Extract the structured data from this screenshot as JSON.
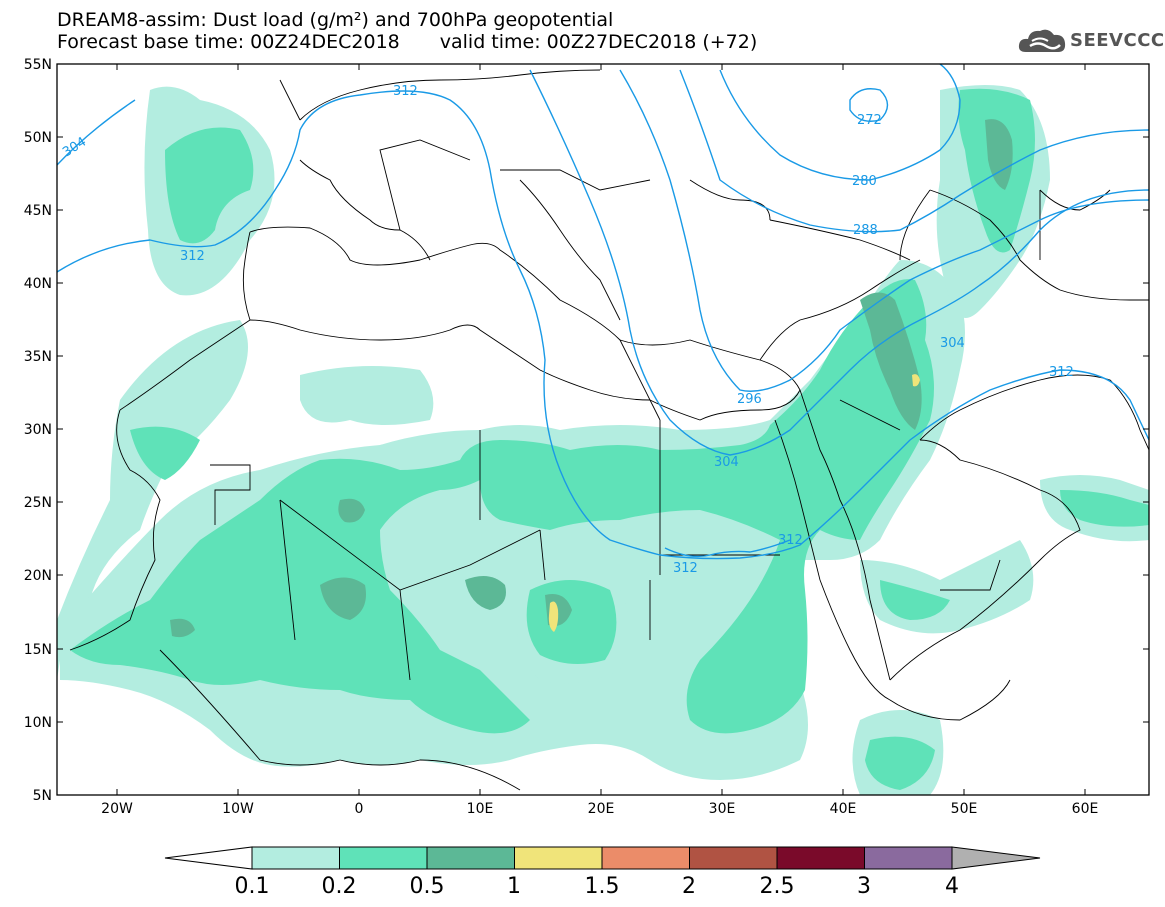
{
  "title": {
    "line1": "DREAM8-assim: Dust load (g/m²) and 700hPa geopotential",
    "base_time": "Forecast base time: 00Z24DEC2018",
    "valid_time": "valid time: 00Z27DEC2018 (+72)"
  },
  "logo": {
    "text": "SEEVCCC",
    "icon": "cloud-icon"
  },
  "lat_labels": [
    "55N",
    "50N",
    "45N",
    "40N",
    "35N",
    "30N",
    "25N",
    "20N",
    "15N",
    "10N",
    "5N"
  ],
  "lon_labels": [
    "20W",
    "10W",
    "0",
    "10E",
    "20E",
    "30E",
    "40E",
    "50E",
    "60E"
  ],
  "colorbar": {
    "ticks": [
      "0.1",
      "0.2",
      "0.5",
      "1",
      "1.5",
      "2",
      "2.5",
      "3",
      "4"
    ],
    "colors": [
      "#b3ede0",
      "#5fe2b8",
      "#5cb896",
      "#f0e47a",
      "#eb8c69",
      "#b05343",
      "#7a0a2a",
      "#8a6a9e",
      "#b0b0b0"
    ]
  },
  "contour_labels": [
    "304",
    "312",
    "312",
    "272",
    "280",
    "288",
    "304",
    "296",
    "304",
    "312",
    "312",
    "312"
  ],
  "colors": {
    "contour": "#1a9ae6",
    "boundary": "#000000"
  }
}
